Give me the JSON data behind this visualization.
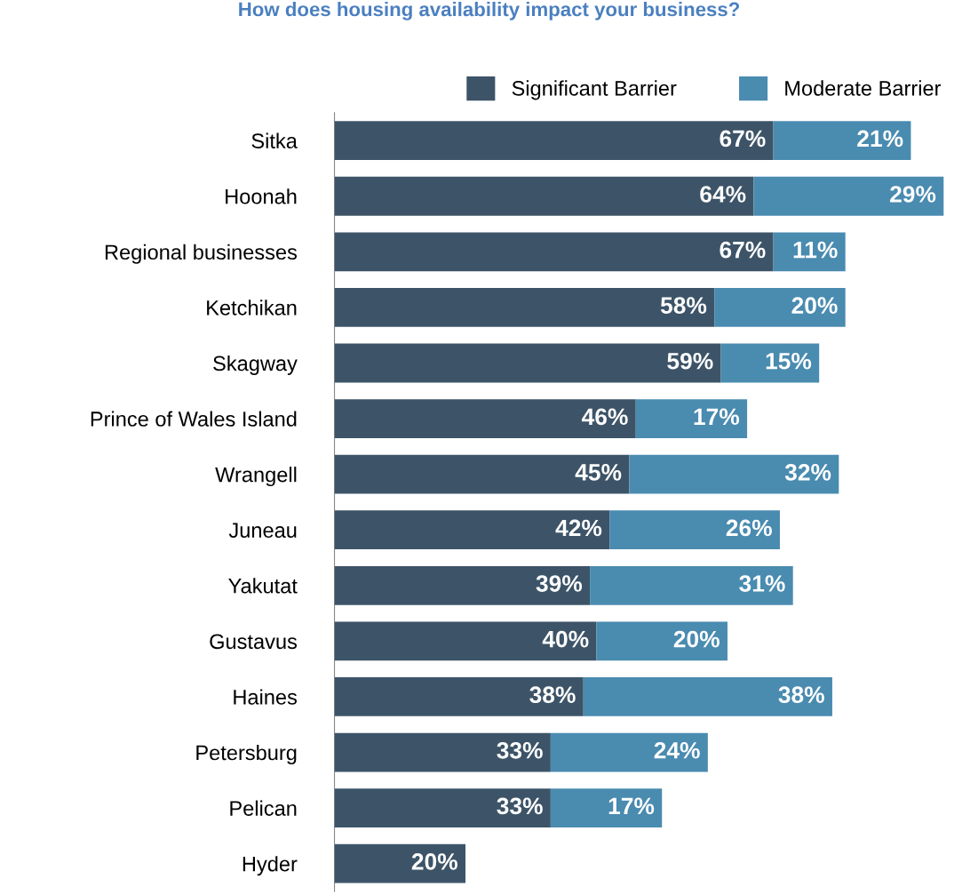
{
  "chart_data": {
    "type": "bar",
    "orientation": "horizontal",
    "stacked": true,
    "title": "How does housing availability impact your business?",
    "categories": [
      "Sitka",
      "Hoonah",
      "Regional businesses",
      "Ketchikan",
      "Skagway",
      "Prince of Wales Island",
      "Wrangell",
      "Juneau",
      "Yakutat",
      "Gustavus",
      "Haines",
      "Petersburg",
      "Pelican",
      "Hyder"
    ],
    "series": [
      {
        "name": "Significant Barrier",
        "color": "#3d5468",
        "values": [
          67,
          64,
          67,
          58,
          59,
          46,
          45,
          42,
          39,
          40,
          38,
          33,
          33,
          20
        ],
        "value_labels": [
          "67%",
          "64%",
          "67%",
          "58%",
          "59%",
          "46%",
          "45%",
          "42%",
          "39%",
          "40%",
          "38%",
          "33%",
          "33%",
          "20%"
        ]
      },
      {
        "name": "Moderate Barrier",
        "color": "#4a8bb0",
        "values": [
          21,
          29,
          11,
          20,
          15,
          17,
          32,
          26,
          31,
          20,
          38,
          24,
          17,
          null
        ],
        "value_labels": [
          "21%",
          "29%",
          "11%",
          "20%",
          "15%",
          "17%",
          "32%",
          "26%",
          "31%",
          "20%",
          "38%",
          "24%",
          "17%",
          null
        ]
      }
    ],
    "legend": "top",
    "tick_labels": "y"
  }
}
